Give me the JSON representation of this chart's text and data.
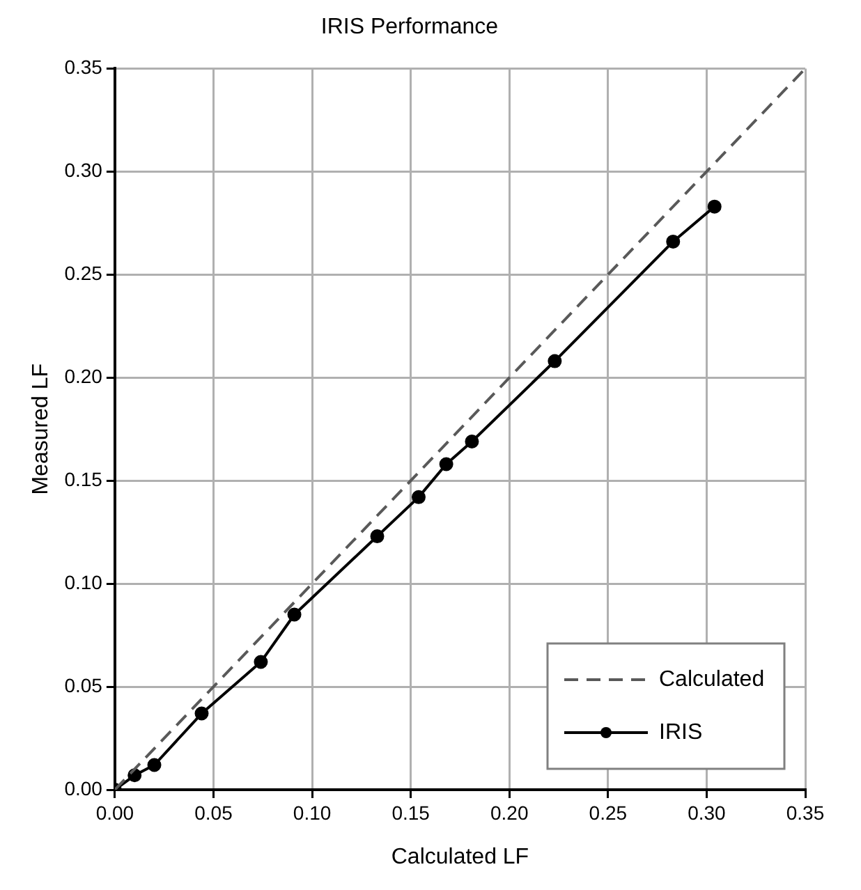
{
  "chart_data": {
    "type": "line",
    "title": "IRIS Performance",
    "xlabel": "Calculated LF",
    "ylabel": "Measured LF",
    "series": [
      {
        "name": "Calculated",
        "color": "#595959",
        "x": [
          0,
          0.35
        ],
        "values": [
          0,
          0.35
        ],
        "line_style": "dashed",
        "marker": "none"
      },
      {
        "name": "IRIS",
        "color": "#000000",
        "x": [
          0,
          0.01,
          0.02,
          0.044,
          0.074,
          0.091,
          0.133,
          0.154,
          0.168,
          0.181,
          0.223,
          0.283,
          0.304
        ],
        "values": [
          0,
          0.007,
          0.012,
          0.037,
          0.062,
          0.085,
          0.123,
          0.142,
          0.158,
          0.169,
          0.208,
          0.266,
          0.283
        ],
        "line_style": "solid",
        "marker": "circle"
      }
    ],
    "xlim": [
      0,
      0.35
    ],
    "xticks": [
      {
        "value": 0,
        "label": "0.00"
      },
      {
        "value": 0.05,
        "label": "0.05"
      },
      {
        "value": 0.1,
        "label": "0.10"
      },
      {
        "value": 0.15,
        "label": "0.15"
      },
      {
        "value": 0.2,
        "label": "0.20"
      },
      {
        "value": 0.25,
        "label": "0.25"
      },
      {
        "value": 0.3,
        "label": "0.30"
      },
      {
        "value": 0.35,
        "label": "0.35"
      }
    ],
    "ylim": [
      0,
      0.35
    ],
    "yticks": [
      {
        "value": 0,
        "label": "0.00"
      },
      {
        "value": 0.05,
        "label": "0.05"
      },
      {
        "value": 0.1,
        "label": "0.10"
      },
      {
        "value": 0.15,
        "label": "0.15"
      },
      {
        "value": 0.2,
        "label": "0.20"
      },
      {
        "value": 0.25,
        "label": "0.25"
      },
      {
        "value": 0.3,
        "label": "0.30"
      },
      {
        "value": 0.35,
        "label": "0.35"
      }
    ],
    "grid": true,
    "legend": "bottom right"
  }
}
